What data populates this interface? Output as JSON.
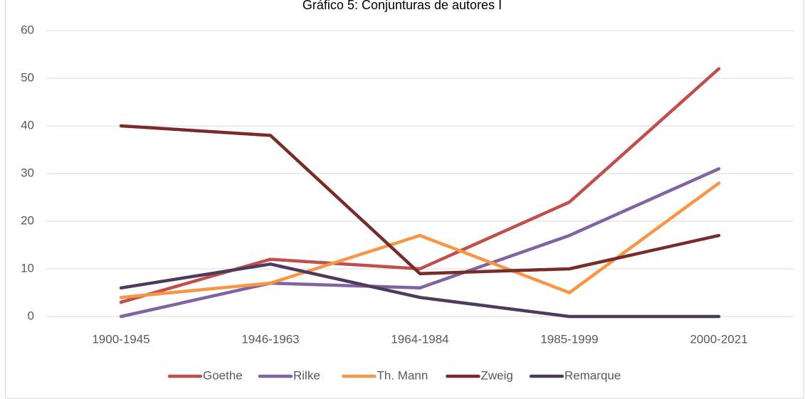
{
  "chart_data": {
    "type": "line",
    "title": "Gráfico 5: Conjunturas de autores I",
    "categories": [
      "1900-1945",
      "1946-1963",
      "1964-1984",
      "1985-1999",
      "2000-2021"
    ],
    "series": [
      {
        "name": "Goethe",
        "color": "#c0504d",
        "values": [
          3,
          12,
          10,
          24,
          52
        ]
      },
      {
        "name": "Rilke",
        "color": "#8064a2",
        "values": [
          0,
          7,
          6,
          17,
          31
        ]
      },
      {
        "name": "Th. Mann",
        "color": "#f79646",
        "values": [
          4,
          7,
          17,
          5,
          28
        ]
      },
      {
        "name": "Zweig",
        "color": "#772c2a",
        "values": [
          40,
          38,
          9,
          10,
          17
        ]
      },
      {
        "name": "Remarque",
        "color": "#4f3a5e",
        "values": [
          6,
          11,
          4,
          0,
          0
        ]
      }
    ],
    "ylim": [
      0,
      60
    ],
    "yticks": [
      0,
      10,
      20,
      30,
      40,
      50,
      60
    ],
    "grid": true,
    "legend": "bottom"
  }
}
